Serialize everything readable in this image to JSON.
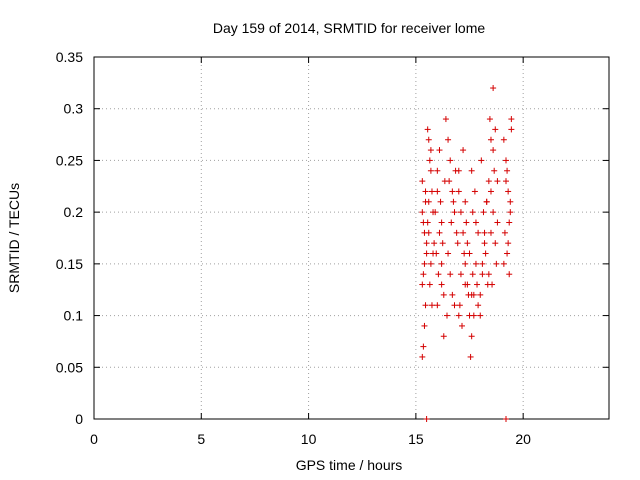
{
  "chart_data": {
    "type": "scatter",
    "title": "Day 159 of 2014, SRMTID for receiver lome",
    "xlabel": "GPS time / hours",
    "ylabel": "SRMTID / TECUs",
    "xlim": [
      0,
      24
    ],
    "ylim": [
      0,
      0.35
    ],
    "xticks": [
      0,
      5,
      10,
      15,
      20
    ],
    "xtick_labels": [
      "0",
      "5",
      "10",
      "15",
      "20"
    ],
    "yticks": [
      0,
      0.05,
      0.1,
      0.15,
      0.2,
      0.25,
      0.3,
      0.35
    ],
    "ytick_labels": [
      "0",
      "0.05",
      "0.1",
      "0.15",
      "0.2",
      "0.25",
      "0.3",
      "0.35"
    ],
    "grid": true,
    "marker": "+",
    "color": "#d40000",
    "series": [
      {
        "name": "SRMTID",
        "x": [
          15.3,
          15.35,
          15.4,
          15.45,
          15.3,
          15.4,
          15.5,
          15.35,
          15.45,
          15.3,
          15.5,
          15.4,
          15.35,
          15.45,
          15.3,
          15.55,
          15.6,
          15.65,
          15.7,
          15.75,
          15.8,
          15.6,
          15.7,
          15.65,
          15.75,
          15.8,
          15.55,
          15.6,
          15.7,
          15.85,
          15.9,
          16.0,
          16.1,
          16.2,
          16.3,
          16.0,
          16.1,
          16.2,
          15.95,
          16.05,
          16.15,
          16.25,
          16.35,
          16.0,
          16.2,
          16.4,
          16.5,
          16.6,
          16.7,
          16.8,
          16.9,
          16.5,
          16.6,
          16.7,
          16.45,
          16.55,
          16.65,
          16.75,
          16.85,
          16.95,
          17.0,
          17.1,
          17.2,
          17.3,
          17.4,
          17.05,
          17.15,
          17.25,
          17.35,
          17.0,
          17.2,
          17.3,
          17.1,
          17.4,
          17.45,
          17.5,
          17.6,
          17.7,
          17.8,
          17.9,
          17.55,
          17.65,
          17.75,
          17.85,
          17.5,
          17.7,
          17.6,
          17.8,
          17.65,
          17.9,
          18.0,
          18.1,
          18.2,
          18.3,
          18.4,
          18.5,
          18.05,
          18.15,
          18.25,
          18.35,
          18.45,
          18.0,
          18.2,
          18.4,
          18.5,
          18.6,
          18.7,
          18.8,
          18.65,
          18.75,
          18.6,
          18.7,
          18.55,
          18.8,
          18.6,
          19.1,
          19.2,
          19.3,
          19.4,
          19.15,
          19.25,
          19.35,
          19.45,
          19.2,
          19.3,
          19.1,
          19.4,
          19.25,
          19.35,
          19.45,
          15.5,
          16.3,
          17.0,
          17.6,
          18.1,
          18.5,
          19.2,
          16.8,
          17.3,
          18.3
        ],
        "y": [
          0.06,
          0.07,
          0.09,
          0.11,
          0.13,
          0.15,
          0.17,
          0.19,
          0.21,
          0.23,
          0.16,
          0.18,
          0.14,
          0.22,
          0.2,
          0.28,
          0.27,
          0.25,
          0.24,
          0.22,
          0.2,
          0.18,
          0.15,
          0.13,
          0.11,
          0.16,
          0.19,
          0.21,
          0.26,
          0.17,
          0.2,
          0.22,
          0.18,
          0.15,
          0.12,
          0.24,
          0.26,
          0.19,
          0.16,
          0.14,
          0.21,
          0.17,
          0.23,
          0.11,
          0.13,
          0.29,
          0.27,
          0.25,
          0.22,
          0.2,
          0.18,
          0.16,
          0.14,
          0.12,
          0.1,
          0.23,
          0.19,
          0.21,
          0.24,
          0.17,
          0.22,
          0.2,
          0.18,
          0.15,
          0.13,
          0.11,
          0.09,
          0.16,
          0.19,
          0.24,
          0.26,
          0.21,
          0.14,
          0.17,
          0.12,
          0.1,
          0.08,
          0.12,
          0.15,
          0.18,
          0.06,
          0.2,
          0.22,
          0.13,
          0.16,
          0.1,
          0.24,
          0.19,
          0.14,
          0.11,
          0.12,
          0.15,
          0.18,
          0.21,
          0.23,
          0.27,
          0.25,
          0.2,
          0.16,
          0.13,
          0.29,
          0.1,
          0.17,
          0.14,
          0.22,
          0.32,
          0.28,
          0.19,
          0.24,
          0.15,
          0.2,
          0.17,
          0.13,
          0.23,
          0.26,
          0.27,
          0.25,
          0.22,
          0.2,
          0.18,
          0.16,
          0.14,
          0.29,
          0.23,
          0.17,
          0.15,
          0.21,
          0.24,
          0.19,
          0.28,
          0.0,
          0.08,
          0.1,
          0.12,
          0.14,
          0.18,
          0.0,
          0.11,
          0.13,
          0.21
        ]
      }
    ]
  }
}
